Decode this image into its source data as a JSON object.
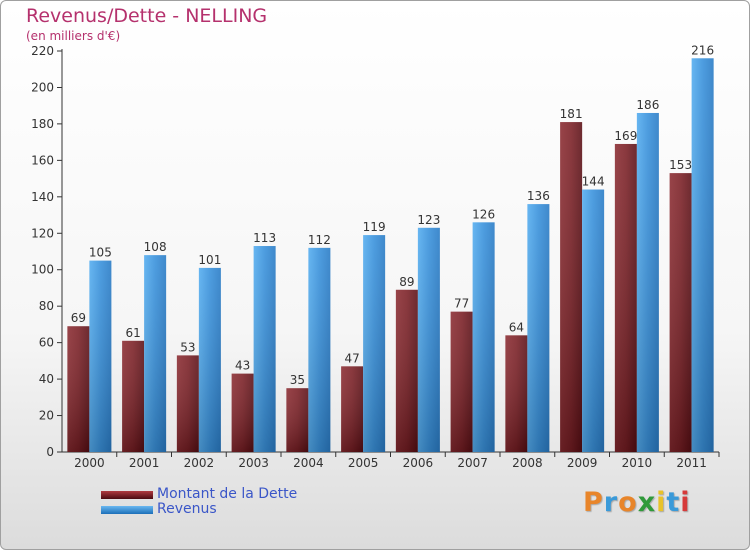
{
  "title": "Revenus/Dette - NELLING",
  "subtitle": "(en milliers d'€)",
  "logo": {
    "text": "Proxiti",
    "colors": [
      "#e8852a",
      "#3a9ad9",
      "#e8852a",
      "#2f9a3a",
      "#e8c22a",
      "#3a9ad9",
      "#d63a3a"
    ]
  },
  "colors": {
    "debt": "#7a1e24",
    "revenue": "#3a92dc",
    "title": "#b5316d",
    "legend_text": "#3a56c8"
  },
  "chart_data": {
    "type": "bar",
    "title": "Revenus/Dette - NELLING",
    "subtitle": "(en milliers d'€)",
    "categories": [
      "2000",
      "2001",
      "2002",
      "2003",
      "2004",
      "2005",
      "2006",
      "2007",
      "2008",
      "2009",
      "2010",
      "2011"
    ],
    "series": [
      {
        "name": "Montant de la Dette",
        "values": [
          69,
          61,
          53,
          43,
          35,
          47,
          89,
          77,
          64,
          181,
          169,
          153
        ]
      },
      {
        "name": "Revenus",
        "values": [
          105,
          108,
          101,
          113,
          112,
          119,
          123,
          126,
          136,
          144,
          186,
          216
        ]
      }
    ],
    "ylim": [
      0,
      220
    ],
    "yticks": [
      0,
      20,
      40,
      60,
      80,
      100,
      120,
      140,
      160,
      180,
      200,
      220
    ],
    "grid": false,
    "legend": "bottom-left"
  }
}
